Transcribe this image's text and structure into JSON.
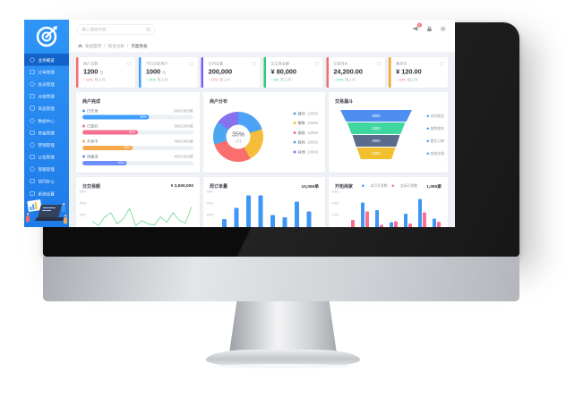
{
  "sidebar": {
    "items": [
      {
        "label": "业务概览",
        "icon": "home-icon",
        "active": true
      },
      {
        "label": "订单管理",
        "icon": "document-icon"
      },
      {
        "label": "会员管理",
        "icon": "user-icon"
      },
      {
        "label": "仓库管理",
        "icon": "box-icon"
      },
      {
        "label": "商品管理",
        "icon": "grid-icon"
      },
      {
        "label": "数据中心",
        "icon": "chart-icon"
      },
      {
        "label": "资金管理",
        "icon": "wallet-icon"
      },
      {
        "label": "营销管理",
        "icon": "megaphone-icon"
      },
      {
        "label": "公告管理",
        "icon": "mail-icon"
      },
      {
        "label": "客服管理",
        "icon": "chat-icon"
      },
      {
        "label": "协同办公",
        "icon": "calendar-icon"
      },
      {
        "label": "系统设置",
        "icon": "monitor-icon"
      }
    ]
  },
  "header": {
    "search_placeholder": "输入搜索内容",
    "notification_badge": "5"
  },
  "breadcrumb": {
    "home": "系统首页",
    "sep": "/",
    "level2": "综合分析",
    "level3": "页面看板"
  },
  "kpi_cards": [
    {
      "title": "商户总数",
      "value": "1200",
      "unit": "位",
      "trend": "↑ 10%",
      "trend_color": "#f56c6c",
      "suffix": "较上月",
      "accent": "#f56c6c"
    },
    {
      "title": "今日活跃用户",
      "value": "1000",
      "unit": "位",
      "trend": "↑ 10%",
      "trend_color": "#2ecc71",
      "suffix": "较上月",
      "accent": "#409eff"
    },
    {
      "title": "访问总量",
      "value": "200,000",
      "unit": "",
      "trend": "↑ 12%",
      "trend_color": "#f56c6c",
      "suffix": "较上月",
      "accent": "#7c5cfc"
    },
    {
      "title": "总交易金额",
      "value": "¥ 80,000",
      "unit": "",
      "trend": "↑ 8%",
      "trend_color": "#2ecc71",
      "suffix": "较上月",
      "accent": "#2ecc71"
    },
    {
      "title": "交易流水",
      "value": "24,200.00",
      "unit": "",
      "trend": "↓ 22%",
      "trend_color": "#2ecc71",
      "suffix": "较上月",
      "accent": "#f56c6c"
    },
    {
      "title": "客单价",
      "value": "¥ 120.00",
      "unit": "",
      "trend": "↑ 10%",
      "trend_color": "#f56c6c",
      "suffix": "较上月",
      "accent": "#f5a623"
    }
  ],
  "merchant_progress": {
    "title": "商户完成",
    "rows": [
      {
        "label": "已开发",
        "ratio": "600/1000家",
        "pct": 60,
        "pct_label": "60%",
        "color": "#409eff"
      },
      {
        "label": "已签约",
        "ratio": "500/1000家",
        "pct": 50,
        "pct_label": "50%",
        "color": "#f6708f"
      },
      {
        "label": "开发中",
        "ratio": "450/1000家",
        "pct": 45,
        "pct_label": "45%",
        "color": "#f5a94b"
      },
      {
        "label": "待跟进",
        "ratio": "400/1000家",
        "pct": 40,
        "pct_label": "40%",
        "color": "#6f8df7"
      }
    ]
  },
  "distribution": {
    "title": "商户分布",
    "center_value": "35%",
    "center_label": "占比",
    "segments": [
      {
        "color": "#4da2f8",
        "deg": 72
      },
      {
        "color": "#f6bd3a",
        "deg": 79
      },
      {
        "color": "#fa6e6e",
        "deg": 101
      },
      {
        "color": "#4aa7f0",
        "deg": 54
      },
      {
        "color": "#8573ee",
        "deg": 54
      }
    ],
    "legend": [
      {
        "label": "餐饮",
        "value": "10000",
        "color": "#4da2f8"
      },
      {
        "label": "零售",
        "value": "10000",
        "color": "#f6bd3a"
      },
      {
        "label": "服装",
        "value": "10000",
        "color": "#fa6e6e"
      },
      {
        "label": "数码",
        "value": "10000",
        "color": "#4aa7f0"
      },
      {
        "label": "其他",
        "value": "10000",
        "color": "#8573ee"
      }
    ]
  },
  "funnel": {
    "title": "交易漏斗",
    "layers": [
      {
        "value": "3000",
        "label": "访问商品",
        "color": "#4e8ef0"
      },
      {
        "value": "2500",
        "label": "加购物车",
        "color": "#3fd6a0"
      },
      {
        "value": "2000",
        "label": "提交订单",
        "color": "#5a6b8c"
      },
      {
        "value": "1000",
        "label": "完成交易",
        "color": "#f2c02e"
      }
    ]
  },
  "daily_chart": {
    "title": "日交易额",
    "total": "¥ 3,500,000",
    "color": "#6ad58b",
    "yticks": [
      "5000",
      "4000",
      "3000"
    ],
    "points": [
      3400,
      3150,
      3650,
      3900,
      3250,
      3550,
      4150,
      3150,
      3450,
      3250,
      3200,
      3650,
      3350,
      3900,
      3450,
      3300,
      4250
    ],
    "ymin": 2700,
    "ymax": 5200
  },
  "weekly_chart": {
    "title": "周订单量",
    "total": "10,000单",
    "color": "#3e97f5",
    "yticks": [
      "9000",
      "6000",
      "3000"
    ],
    "values": [
      3200,
      5600,
      8400,
      8400,
      4100,
      3600,
      7000,
      4800
    ],
    "ymax": 9500
  },
  "channel_chart": {
    "title": "开拓商家",
    "total": "1,000家",
    "legend": [
      {
        "label": "本月开发数",
        "color": "#3e97f5"
      },
      {
        "label": "实际开发数",
        "color": "#f6708f"
      }
    ],
    "yticks": [
      "6000",
      "4000",
      "2000"
    ],
    "series1": [
      800,
      5000,
      3800,
      1800,
      3200,
      5600,
      2400
    ],
    "series2": [
      2200,
      3600,
      1400,
      2000,
      1600,
      3400,
      1900
    ],
    "ymax": 7000
  }
}
